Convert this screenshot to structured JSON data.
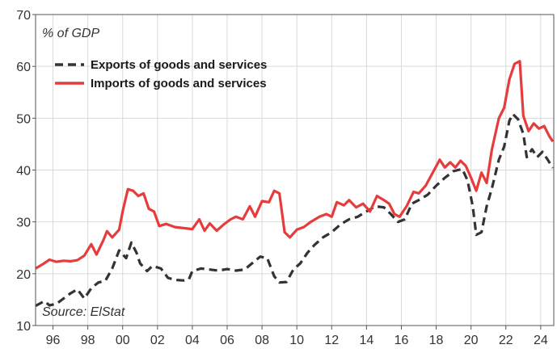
{
  "chart_data": {
    "type": "line",
    "unit_label": "% of GDP",
    "source": "Source: ElStat",
    "ylim": [
      10,
      70
    ],
    "y_ticks": [
      10,
      20,
      30,
      40,
      50,
      60,
      70
    ],
    "xlim": [
      1995.0,
      2024.75
    ],
    "x_ticks": [
      {
        "label": "96",
        "x": 1996
      },
      {
        "label": "98",
        "x": 1998
      },
      {
        "label": "00",
        "x": 2000
      },
      {
        "label": "02",
        "x": 2002
      },
      {
        "label": "04",
        "x": 2004
      },
      {
        "label": "06",
        "x": 2006
      },
      {
        "label": "08",
        "x": 2008
      },
      {
        "label": "10",
        "x": 2010
      },
      {
        "label": "12",
        "x": 2012
      },
      {
        "label": "14",
        "x": 2014
      },
      {
        "label": "16",
        "x": 2016
      },
      {
        "label": "18",
        "x": 2018
      },
      {
        "label": "20",
        "x": 2020
      },
      {
        "label": "22",
        "x": 2022
      },
      {
        "label": "24",
        "x": 2024
      }
    ],
    "grid": true,
    "legend_position": "top-left",
    "series": [
      {
        "name": "Exports of goods and services",
        "style": "dashed",
        "color": "#333333",
        "points": [
          [
            1995.0,
            13.8
          ],
          [
            1995.5,
            14.7
          ],
          [
            1995.8,
            13.9
          ],
          [
            1996.2,
            14.2
          ],
          [
            1996.6,
            15.2
          ],
          [
            1997.0,
            16.2
          ],
          [
            1997.4,
            17.0
          ],
          [
            1997.8,
            15.2
          ],
          [
            1998.2,
            17.2
          ],
          [
            1998.6,
            18.3
          ],
          [
            1999.0,
            18.6
          ],
          [
            1999.4,
            21.0
          ],
          [
            1999.8,
            24.5
          ],
          [
            2000.2,
            23.0
          ],
          [
            2000.5,
            26.0
          ],
          [
            2000.8,
            24.0
          ],
          [
            2001.0,
            22.0
          ],
          [
            2001.4,
            20.5
          ],
          [
            2001.7,
            21.5
          ],
          [
            2002.2,
            21.0
          ],
          [
            2002.6,
            19.2
          ],
          [
            2003.0,
            18.8
          ],
          [
            2003.5,
            18.7
          ],
          [
            2003.8,
            18.9
          ],
          [
            2004.0,
            20.5
          ],
          [
            2004.5,
            21.0
          ],
          [
            2005.0,
            20.8
          ],
          [
            2005.5,
            20.6
          ],
          [
            2006.0,
            20.9
          ],
          [
            2006.5,
            20.6
          ],
          [
            2007.0,
            20.8
          ],
          [
            2007.5,
            22.2
          ],
          [
            2007.9,
            23.3
          ],
          [
            2008.3,
            23.0
          ],
          [
            2008.7,
            19.5
          ],
          [
            2009.0,
            18.3
          ],
          [
            2009.4,
            18.4
          ],
          [
            2009.8,
            20.8
          ],
          [
            2010.2,
            22.0
          ],
          [
            2010.6,
            24.0
          ],
          [
            2011.0,
            25.5
          ],
          [
            2011.5,
            27.0
          ],
          [
            2012.0,
            28.0
          ],
          [
            2012.5,
            29.5
          ],
          [
            2013.0,
            30.5
          ],
          [
            2013.5,
            31.0
          ],
          [
            2014.0,
            32.0
          ],
          [
            2014.5,
            33.0
          ],
          [
            2015.0,
            32.8
          ],
          [
            2015.4,
            31.5
          ],
          [
            2015.8,
            30.0
          ],
          [
            2016.2,
            30.5
          ],
          [
            2016.6,
            33.5
          ],
          [
            2017.0,
            34.2
          ],
          [
            2017.5,
            35.2
          ],
          [
            2018.0,
            37.0
          ],
          [
            2018.5,
            38.5
          ],
          [
            2019.0,
            39.8
          ],
          [
            2019.5,
            40.2
          ],
          [
            2019.8,
            38.0
          ],
          [
            2020.1,
            33.0
          ],
          [
            2020.3,
            27.5
          ],
          [
            2020.6,
            28.0
          ],
          [
            2020.9,
            33.0
          ],
          [
            2021.2,
            36.5
          ],
          [
            2021.6,
            42.0
          ],
          [
            2021.9,
            44.5
          ],
          [
            2022.2,
            49.5
          ],
          [
            2022.4,
            50.8
          ],
          [
            2022.7,
            49.8
          ],
          [
            2023.0,
            47.0
          ],
          [
            2023.2,
            42.5
          ],
          [
            2023.5,
            44.0
          ],
          [
            2023.8,
            42.5
          ],
          [
            2024.1,
            43.5
          ],
          [
            2024.4,
            42.0
          ],
          [
            2024.7,
            40.4
          ]
        ]
      },
      {
        "name": "Imports of goods and services",
        "style": "solid",
        "color": "#e63c3c",
        "points": [
          [
            1995.0,
            21.0
          ],
          [
            1995.4,
            21.8
          ],
          [
            1995.8,
            22.7
          ],
          [
            1996.2,
            22.3
          ],
          [
            1996.6,
            22.5
          ],
          [
            1997.0,
            22.4
          ],
          [
            1997.4,
            22.6
          ],
          [
            1997.8,
            23.5
          ],
          [
            1998.2,
            25.7
          ],
          [
            1998.5,
            23.7
          ],
          [
            1998.9,
            26.5
          ],
          [
            1999.1,
            28.2
          ],
          [
            1999.4,
            27.0
          ],
          [
            1999.8,
            28.5
          ],
          [
            2000.0,
            32.0
          ],
          [
            2000.3,
            36.3
          ],
          [
            2000.6,
            36.0
          ],
          [
            2000.9,
            35.0
          ],
          [
            2001.2,
            35.5
          ],
          [
            2001.5,
            32.5
          ],
          [
            2001.8,
            32.0
          ],
          [
            2002.1,
            29.2
          ],
          [
            2002.5,
            29.6
          ],
          [
            2003.0,
            29.0
          ],
          [
            2003.5,
            28.8
          ],
          [
            2004.0,
            28.6
          ],
          [
            2004.4,
            30.5
          ],
          [
            2004.7,
            28.3
          ],
          [
            2005.0,
            29.7
          ],
          [
            2005.4,
            28.3
          ],
          [
            2005.8,
            29.5
          ],
          [
            2006.2,
            30.5
          ],
          [
            2006.5,
            31.0
          ],
          [
            2006.9,
            30.5
          ],
          [
            2007.3,
            33.0
          ],
          [
            2007.6,
            31.0
          ],
          [
            2008.0,
            34.0
          ],
          [
            2008.4,
            33.8
          ],
          [
            2008.7,
            36.0
          ],
          [
            2009.0,
            35.5
          ],
          [
            2009.3,
            28.0
          ],
          [
            2009.6,
            27.0
          ],
          [
            2010.0,
            28.5
          ],
          [
            2010.4,
            29.0
          ],
          [
            2010.8,
            30.0
          ],
          [
            2011.3,
            31.0
          ],
          [
            2011.7,
            31.5
          ],
          [
            2012.0,
            31.0
          ],
          [
            2012.3,
            33.8
          ],
          [
            2012.7,
            33.2
          ],
          [
            2013.0,
            34.2
          ],
          [
            2013.4,
            32.8
          ],
          [
            2013.8,
            33.5
          ],
          [
            2014.2,
            32.0
          ],
          [
            2014.6,
            35.0
          ],
          [
            2015.0,
            34.2
          ],
          [
            2015.3,
            33.5
          ],
          [
            2015.6,
            31.5
          ],
          [
            2015.9,
            31.0
          ],
          [
            2016.3,
            33.0
          ],
          [
            2016.7,
            35.8
          ],
          [
            2017.0,
            35.5
          ],
          [
            2017.4,
            37.0
          ],
          [
            2017.8,
            39.5
          ],
          [
            2018.2,
            42.0
          ],
          [
            2018.5,
            40.5
          ],
          [
            2018.8,
            41.5
          ],
          [
            2019.1,
            40.5
          ],
          [
            2019.4,
            41.8
          ],
          [
            2019.7,
            40.8
          ],
          [
            2020.0,
            38.5
          ],
          [
            2020.3,
            36.0
          ],
          [
            2020.6,
            39.5
          ],
          [
            2020.9,
            37.5
          ],
          [
            2021.2,
            44.0
          ],
          [
            2021.6,
            50.0
          ],
          [
            2021.9,
            52.0
          ],
          [
            2022.2,
            57.5
          ],
          [
            2022.5,
            60.5
          ],
          [
            2022.8,
            61.0
          ],
          [
            2023.0,
            50.5
          ],
          [
            2023.3,
            47.5
          ],
          [
            2023.6,
            49.0
          ],
          [
            2023.9,
            48.0
          ],
          [
            2024.2,
            48.5
          ],
          [
            2024.5,
            46.5
          ],
          [
            2024.7,
            45.5
          ]
        ]
      }
    ]
  }
}
